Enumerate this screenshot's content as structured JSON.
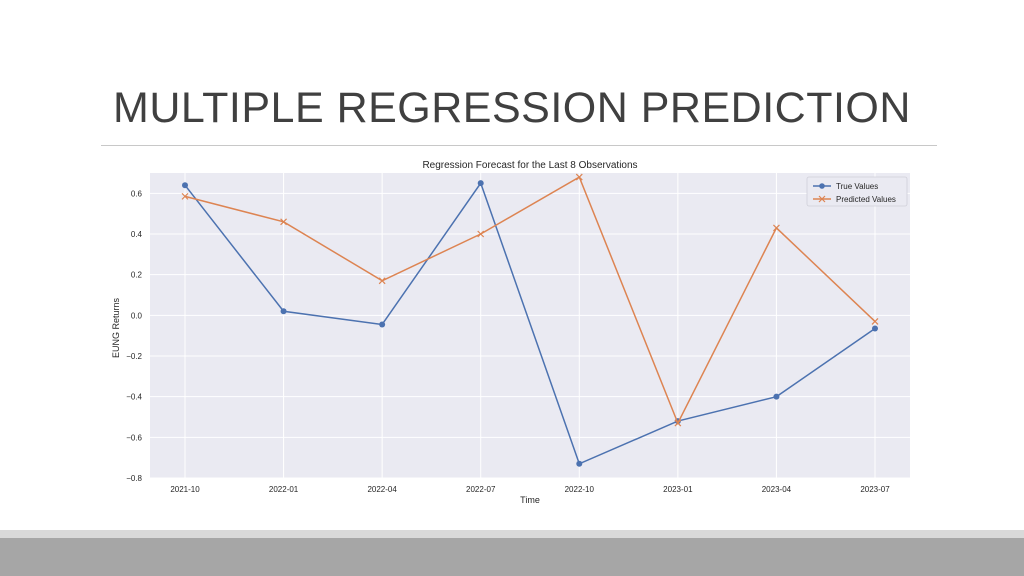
{
  "slide": {
    "title": "MULTIPLE REGRESSION PREDICTION"
  },
  "colors": {
    "true_series": "#4c72b0",
    "predicted_series": "#dd8452",
    "plot_background": "#eaeaf2",
    "grid": "#ffffff"
  },
  "chart_data": {
    "type": "line",
    "title": "Regression Forecast for the Last 8 Observations",
    "xlabel": "Time",
    "ylabel": "EUNG Returns",
    "x": [
      "2021-10",
      "2022-01",
      "2022-04",
      "2022-07",
      "2022-10",
      "2023-01",
      "2023-04",
      "2023-07"
    ],
    "ylim": [
      -0.8,
      0.7
    ],
    "yticks": [
      -0.8,
      -0.6,
      -0.4,
      -0.2,
      0.0,
      0.2,
      0.4,
      0.6
    ],
    "ytick_labels": [
      "−0.8",
      "−0.6",
      "−0.4",
      "−0.2",
      "0.0",
      "0.2",
      "0.4",
      "0.6"
    ],
    "grid": true,
    "legend_position": "top-right",
    "series": [
      {
        "name": "True Values",
        "marker": "circle",
        "values": [
          0.64,
          0.02,
          -0.045,
          0.65,
          -0.73,
          -0.52,
          -0.4,
          -0.065
        ]
      },
      {
        "name": "Predicted Values",
        "marker": "x",
        "values": [
          0.585,
          0.46,
          0.17,
          0.4,
          0.68,
          -0.53,
          0.43,
          -0.03
        ]
      }
    ]
  }
}
